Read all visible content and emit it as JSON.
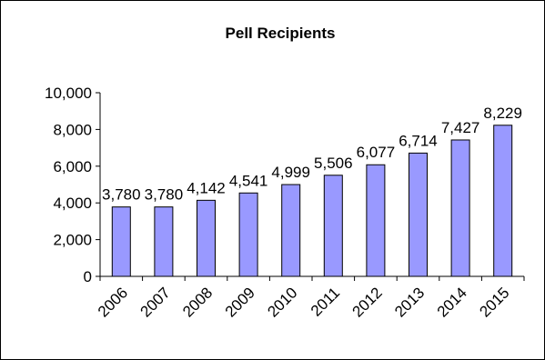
{
  "chart_data": {
    "type": "bar",
    "title": "Pell Recipients",
    "xlabel": "",
    "ylabel": "",
    "categories": [
      "2006",
      "2007",
      "2008",
      "2009",
      "2010",
      "2011",
      "2012",
      "2013",
      "2014",
      "2015"
    ],
    "values": [
      3780,
      3780,
      4142,
      4541,
      4999,
      5506,
      6077,
      6714,
      7427,
      8229
    ],
    "value_labels": [
      "3,780",
      "3,780",
      "4,142",
      "4,541",
      "4,999",
      "5,506",
      "6,077",
      "6,714",
      "7,427",
      "8,229"
    ],
    "ylim": [
      0,
      10000
    ],
    "yticks": [
      0,
      2000,
      4000,
      6000,
      8000,
      10000
    ],
    "ytick_labels": [
      "0",
      "2,000",
      "4,000",
      "6,000",
      "8,000",
      "10,000"
    ],
    "grid": false,
    "legend": "none",
    "bar_color": "#9999FF"
  }
}
